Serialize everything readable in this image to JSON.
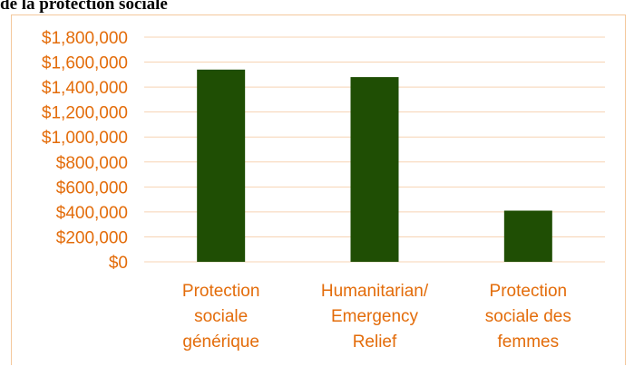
{
  "heading": "de la protection sociale",
  "colors": {
    "bar": "#1f4e04",
    "axis_text": "#e36c0a",
    "gridline": "#f7d3b3",
    "frame": "#f4c89c"
  },
  "chart_data": {
    "type": "bar",
    "title": "",
    "xlabel": "",
    "ylabel": "",
    "ylim": [
      0,
      1800000
    ],
    "y_ticks": [
      "$0",
      "$200,000",
      "$400,000",
      "$600,000",
      "$800,000",
      "$1,000,000",
      "$1,200,000",
      "$1,400,000",
      "$1,600,000",
      "$1,800,000"
    ],
    "y_tick_values": [
      0,
      200000,
      400000,
      600000,
      800000,
      1000000,
      1200000,
      1400000,
      1600000,
      1800000
    ],
    "categories": [
      [
        "Protection",
        "sociale",
        "générique"
      ],
      [
        "Humanitarian/",
        "Emergency",
        "Relief"
      ],
      [
        "Protection",
        "sociale des",
        "femmes"
      ]
    ],
    "values": [
      1540000,
      1480000,
      410000
    ],
    "grid": true,
    "legend": "none"
  }
}
